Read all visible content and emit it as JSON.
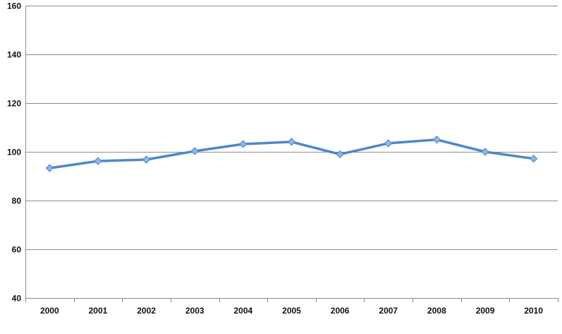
{
  "chart_data": {
    "type": "line",
    "title": "",
    "xlabel": "",
    "ylabel": "",
    "categories": [
      "2000",
      "2001",
      "2002",
      "2003",
      "2004",
      "2005",
      "2006",
      "2007",
      "2008",
      "2009",
      "2010"
    ],
    "series": [
      {
        "values": [
          93.3,
          96.2,
          96.8,
          100.3,
          103.2,
          104.1,
          99.0,
          103.5,
          105.0,
          100.0,
          97.2
        ]
      }
    ],
    "ylim": [
      40,
      160
    ],
    "yticks": [
      "40",
      "60",
      "80",
      "100",
      "120",
      "140",
      "160"
    ],
    "grid": true,
    "legend": "none",
    "colors": {
      "line": "#4f88c6",
      "marker_fill": "#8db6e6",
      "marker_stroke": "#4f88c6",
      "grid": "#8c8c8c",
      "text": "#111111"
    }
  }
}
